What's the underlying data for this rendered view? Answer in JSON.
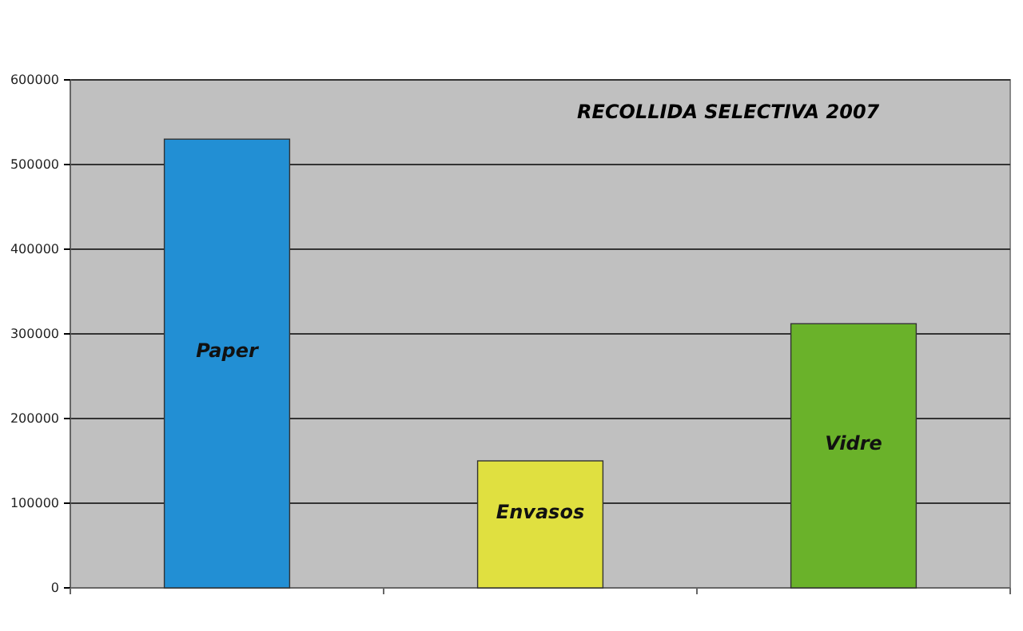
{
  "chart_data": {
    "type": "bar",
    "title": "RECOLLIDA SELECTIVA 2007",
    "categories": [
      "Paper",
      "Envasos",
      "Vidre"
    ],
    "values": [
      530000,
      150000,
      312000
    ],
    "colors": [
      "#228fd4",
      "#e0e040",
      "#6ab22a"
    ],
    "ylim": [
      0,
      600000
    ],
    "yticks": [
      0,
      100000,
      200000,
      300000,
      400000,
      500000,
      600000
    ],
    "grid": "y"
  }
}
